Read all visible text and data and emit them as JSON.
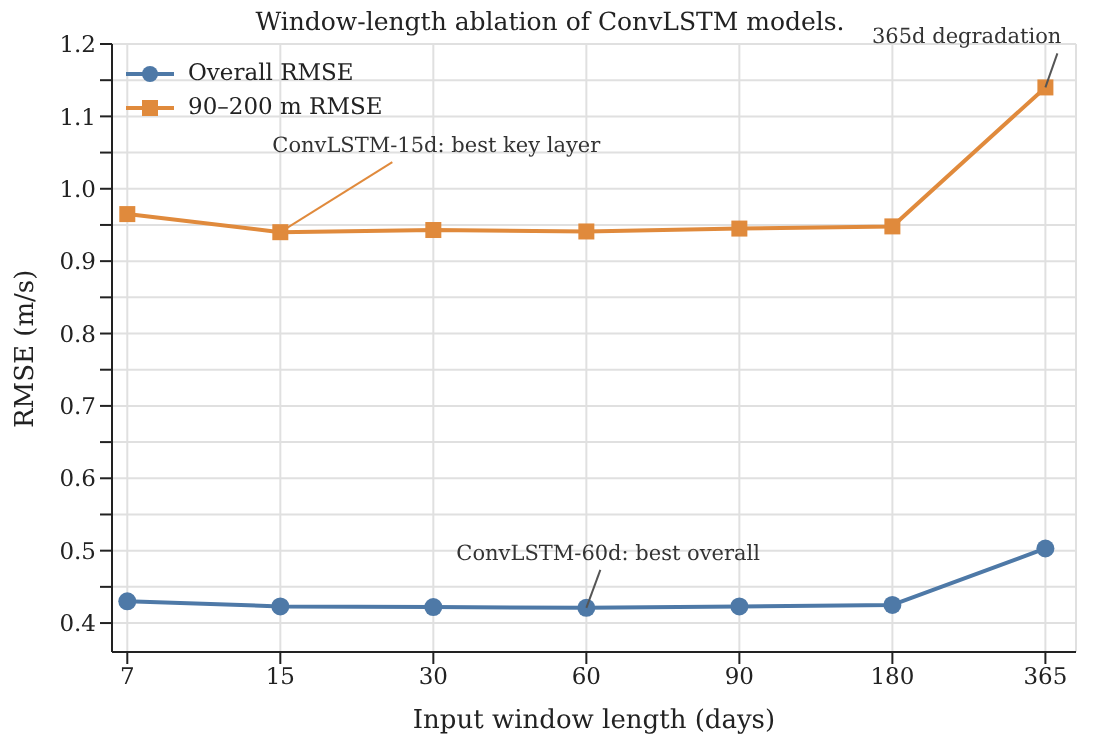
{
  "chart_data": {
    "type": "line",
    "title": "Window-length ablation of ConvLSTM models.",
    "xlabel": "Input window length (days)",
    "ylabel": "RMSE (m/s)",
    "categories": [
      "7",
      "15",
      "30",
      "60",
      "90",
      "180",
      "365"
    ],
    "series": [
      {
        "name": "Overall RMSE",
        "color": "#4e79a7",
        "marker": "circle",
        "values": [
          0.43,
          0.423,
          0.422,
          0.421,
          0.423,
          0.425,
          0.503
        ]
      },
      {
        "name": "90–200 m RMSE",
        "color": "#e08a3c",
        "marker": "square",
        "values": [
          0.965,
          0.94,
          0.943,
          0.941,
          0.945,
          0.948,
          1.14
        ]
      }
    ],
    "ylim": [
      0.36,
      1.2
    ],
    "yticks": [
      0.4,
      {
        "value": 0.45,
        "label": null
      },
      0.5,
      {
        "value": 0.55,
        "label": null
      },
      0.6,
      {
        "value": 0.65,
        "label": null
      },
      0.7,
      {
        "value": 0.75,
        "label": null
      },
      0.8,
      {
        "value": 0.85,
        "label": null
      },
      0.9,
      {
        "value": 0.95,
        "label": null
      },
      {
        "value": 1.0,
        "label": "1.0"
      },
      {
        "value": 1.05,
        "label": null
      },
      1.1,
      {
        "value": 1.15,
        "label": null
      },
      1.2
    ],
    "grid": true,
    "legend": "top left",
    "line_style": "solid",
    "annotations": [
      {
        "text": "ConvLSTM-15d: best key layer",
        "x": "15",
        "y": 0.94
      },
      {
        "text": "365d degradation",
        "x": "365",
        "y": 1.14
      },
      {
        "text": "ConvLSTM-60d: best overall",
        "x": "60",
        "y": 0.421
      }
    ]
  }
}
